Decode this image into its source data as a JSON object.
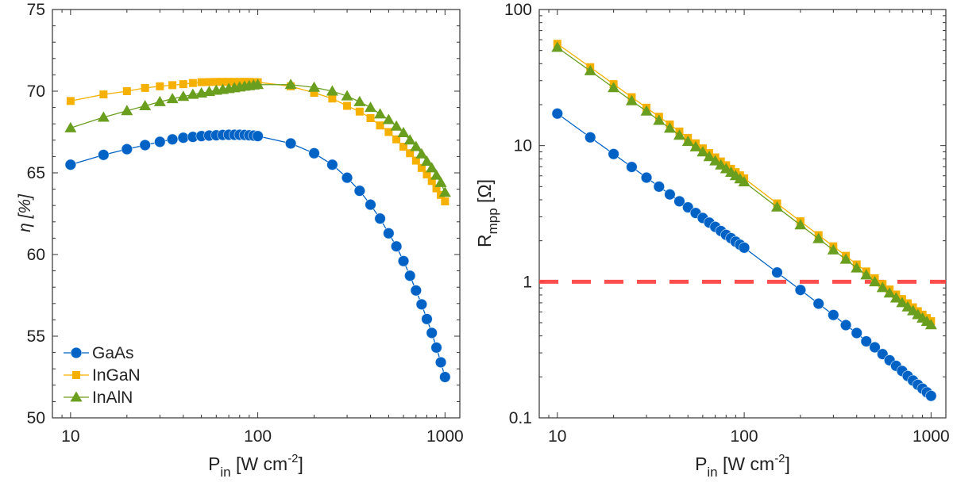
{
  "chart_data": [
    {
      "type": "line",
      "xlabel": "P",
      "xlabel_sub": "in",
      "xlabel_unit_pre": " [W cm",
      "xlabel_sup": "-2",
      "xlabel_unit_post": "]",
      "ylabel": "η [%]",
      "xscale": "log",
      "xlim": [
        8,
        1200
      ],
      "ylim": [
        50,
        75
      ],
      "xticks": [
        10,
        100,
        1000
      ],
      "xtick_labels": [
        "10",
        "100",
        "1000"
      ],
      "yticks": [
        50,
        55,
        60,
        65,
        70,
        75
      ],
      "ytick_labels": [
        "50",
        "55",
        "60",
        "65",
        "70",
        "75"
      ],
      "grid": false,
      "legend_position": "bottom-left",
      "x": [
        10,
        15,
        20,
        25,
        30,
        35,
        40,
        45,
        50,
        55,
        60,
        65,
        70,
        75,
        80,
        85,
        90,
        95,
        100,
        150,
        200,
        250,
        300,
        350,
        400,
        450,
        500,
        550,
        600,
        650,
        700,
        750,
        800,
        850,
        900,
        950,
        1000
      ],
      "series": [
        {
          "name": "GaAs",
          "color": "#0062c4",
          "marker": "circle",
          "values": [
            65.5,
            66.1,
            66.45,
            66.7,
            66.9,
            67.05,
            67.15,
            67.2,
            67.25,
            67.28,
            67.3,
            67.32,
            67.33,
            67.33,
            67.33,
            67.32,
            67.3,
            67.28,
            67.25,
            66.8,
            66.2,
            65.5,
            64.7,
            63.9,
            63.05,
            62.2,
            61.3,
            60.5,
            59.6,
            58.7,
            57.8,
            56.95,
            56.05,
            55.2,
            54.3,
            53.4,
            52.5
          ]
        },
        {
          "name": "InGaN",
          "color": "#f5b000",
          "marker": "square",
          "values": [
            69.4,
            69.8,
            70.0,
            70.2,
            70.3,
            70.37,
            70.43,
            70.5,
            70.55,
            70.56,
            70.57,
            70.57,
            70.57,
            70.57,
            70.57,
            70.57,
            70.57,
            70.56,
            70.55,
            70.3,
            69.9,
            69.55,
            69.1,
            68.75,
            68.35,
            67.9,
            67.5,
            67.05,
            66.6,
            66.2,
            65.75,
            65.3,
            64.9,
            64.5,
            64.05,
            63.65,
            63.25
          ]
        },
        {
          "name": "InAlN",
          "color": "#6a9e1f",
          "marker": "triangle",
          "values": [
            67.75,
            68.4,
            68.8,
            69.1,
            69.35,
            69.53,
            69.67,
            69.8,
            69.88,
            69.97,
            70.05,
            70.1,
            70.15,
            70.2,
            70.25,
            70.3,
            70.33,
            70.37,
            70.4,
            70.4,
            70.23,
            70.0,
            69.7,
            69.35,
            69.0,
            68.6,
            68.25,
            67.85,
            67.45,
            67.0,
            66.6,
            66.15,
            65.7,
            65.3,
            64.85,
            64.4,
            63.8
          ]
        }
      ]
    },
    {
      "type": "line",
      "xlabel": "P",
      "xlabel_sub": "in",
      "xlabel_unit_pre": " [W cm",
      "xlabel_sup": "-2",
      "xlabel_unit_post": "]",
      "ylabel": "R",
      "ylabel_sub": "mpp",
      "ylabel_unit": " [Ω]",
      "xscale": "log",
      "yscale": "log",
      "xlim": [
        8,
        1200
      ],
      "ylim": [
        0.1,
        100
      ],
      "xticks": [
        10,
        100,
        1000
      ],
      "xtick_labels": [
        "10",
        "100",
        "1000"
      ],
      "yticks": [
        0.1,
        1,
        10,
        100
      ],
      "ytick_labels": [
        "0.1",
        "1",
        "10",
        "100"
      ],
      "grid": false,
      "reference_line": {
        "y": 1,
        "color": "#ff3b3b",
        "style": "dashed"
      },
      "x": [
        10,
        15,
        20,
        25,
        30,
        35,
        40,
        45,
        50,
        55,
        60,
        65,
        70,
        75,
        80,
        85,
        90,
        95,
        100,
        150,
        200,
        250,
        300,
        350,
        400,
        450,
        500,
        550,
        600,
        650,
        700,
        750,
        800,
        850,
        900,
        950,
        1000
      ],
      "series": [
        {
          "name": "GaAs",
          "color": "#0062c4",
          "marker": "circle",
          "values": [
            17.2,
            11.5,
            8.68,
            6.97,
            5.82,
            5.0,
            4.38,
            3.9,
            3.52,
            3.2,
            2.94,
            2.72,
            2.53,
            2.36,
            2.21,
            2.09,
            1.97,
            1.87,
            1.78,
            1.17,
            0.87,
            0.69,
            0.57,
            0.48,
            0.42,
            0.365,
            0.33,
            0.294,
            0.265,
            0.241,
            0.221,
            0.203,
            0.188,
            0.175,
            0.164,
            0.154,
            0.145
          ]
        },
        {
          "name": "InGaN",
          "color": "#f5b000",
          "marker": "square",
          "values": [
            56,
            37.7,
            28.3,
            22.7,
            19.0,
            16.3,
            14.3,
            12.7,
            11.4,
            10.4,
            9.55,
            8.81,
            8.19,
            7.65,
            7.18,
            6.76,
            6.38,
            6.05,
            5.75,
            3.76,
            2.78,
            2.2,
            1.82,
            1.55,
            1.34,
            1.19,
            1.06,
            0.962,
            0.877,
            0.806,
            0.746,
            0.694,
            0.649,
            0.608,
            0.573,
            0.541,
            0.513
          ]
        },
        {
          "name": "InAlN",
          "color": "#6a9e1f",
          "marker": "triangle",
          "values": [
            52.6,
            35.4,
            26.6,
            21.3,
            17.9,
            15.3,
            13.4,
            11.9,
            10.7,
            9.78,
            8.98,
            8.28,
            7.7,
            7.19,
            6.75,
            6.35,
            6.0,
            5.69,
            5.41,
            3.53,
            2.61,
            2.07,
            1.71,
            1.46,
            1.26,
            1.12,
            0.996,
            0.904,
            0.824,
            0.758,
            0.701,
            0.652,
            0.61,
            0.572,
            0.539,
            0.509,
            0.482
          ]
        }
      ]
    }
  ]
}
